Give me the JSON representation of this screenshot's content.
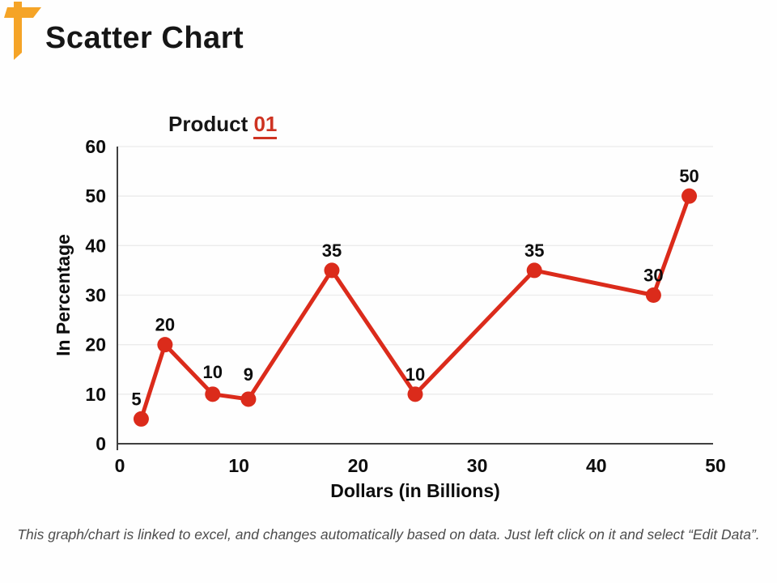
{
  "slide": {
    "title": "Scatter Chart",
    "footer": "This graph/chart is linked to excel, and changes automatically based on data. Just left click on it and select “Edit Data”."
  },
  "chart_title": {
    "prefix": "Product ",
    "highlight": "01"
  },
  "icons": {
    "header_icon": "signpost-icon"
  },
  "colors": {
    "accent_orange": "#F5A427",
    "series_red": "#DB2B1B",
    "highlight_red": "#CE3322",
    "axis": "#404040",
    "grid": "#ebebeb",
    "tick_text": "#0d0d0d",
    "footer_text": "#4d4d4d"
  },
  "chart_data": {
    "type": "scatter",
    "style": "lines+markers",
    "title": "Product 01",
    "xlabel": "Dollars (in Billions)",
    "ylabel": "In Percentage",
    "xlim": [
      0,
      50
    ],
    "ylim": [
      0,
      60
    ],
    "xticks": [
      0,
      10,
      20,
      30,
      40,
      50
    ],
    "yticks": [
      0,
      10,
      20,
      30,
      40,
      50,
      60
    ],
    "grid": "horizontal",
    "legend": "none",
    "series": [
      {
        "name": "Product 01",
        "line_color": "#DB2B1B",
        "marker_color": "#DB2B1B",
        "points": [
          {
            "x": 2,
            "y": 5,
            "label": "5",
            "dx": -6,
            "dy": 0
          },
          {
            "x": 4,
            "y": 20,
            "label": "20",
            "dx": 0,
            "dy": 0
          },
          {
            "x": 8,
            "y": 10,
            "label": "10",
            "dx": 0,
            "dy": -3
          },
          {
            "x": 11,
            "y": 9,
            "label": "9",
            "dx": 0,
            "dy": -6
          },
          {
            "x": 18,
            "y": 35,
            "label": "35",
            "dx": 0,
            "dy": 0
          },
          {
            "x": 25,
            "y": 10,
            "label": "10",
            "dx": 0,
            "dy": 0
          },
          {
            "x": 35,
            "y": 35,
            "label": "35",
            "dx": 0,
            "dy": 0
          },
          {
            "x": 45,
            "y": 30,
            "label": "30",
            "dx": 0,
            "dy": 0
          },
          {
            "x": 48,
            "y": 50,
            "label": "50",
            "dx": 0,
            "dy": 0
          }
        ]
      }
    ]
  }
}
